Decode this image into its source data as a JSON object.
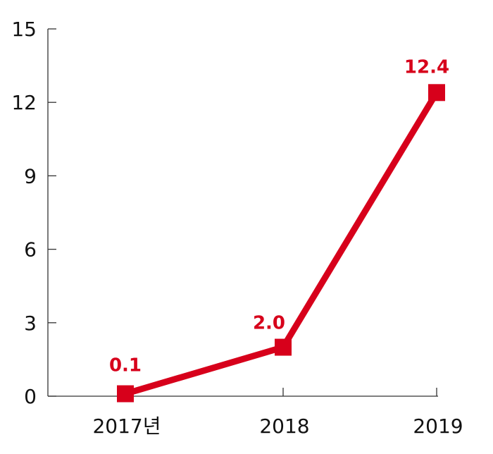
{
  "chart_data": {
    "type": "line",
    "title": "",
    "xlabel": "",
    "ylabel": "",
    "categories": [
      "2017년",
      "2018",
      "2019"
    ],
    "series": [
      {
        "values": [
          0.1,
          2.0,
          12.4
        ]
      }
    ],
    "data_labels": [
      "0.1",
      "2.0",
      "12.4"
    ],
    "y_ticks": [
      0,
      3,
      6,
      9,
      12,
      15
    ],
    "y_tick_labels": [
      "0",
      "3",
      "6",
      "9",
      "12",
      "15"
    ],
    "ylim": [
      0,
      15
    ],
    "grid": false,
    "legend": "none",
    "marker": "square",
    "color": "#d7001b"
  }
}
